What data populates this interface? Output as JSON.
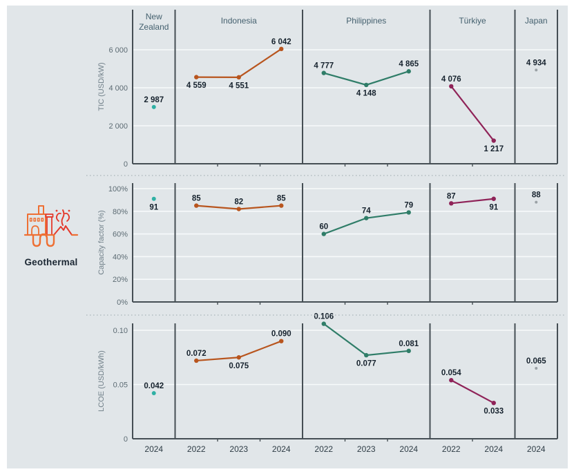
{
  "page": {
    "background": "#ffffff",
    "canvas_background": "#e1e6e9"
  },
  "legend": {
    "label": "Geothermal"
  },
  "icon": {
    "name": "geothermal-plant-icon",
    "orange": "#ee6f33",
    "red": "#e43a2c"
  },
  "chart_data": {
    "type": "line",
    "title": "Geothermal",
    "x_slot_count": 10,
    "colors": {
      "grid": "#f7fafb",
      "frame": "#454e54",
      "separator": "#a8b2b7"
    },
    "panels": [
      {
        "id": "tic",
        "axis_title": "TIC (USD/kW)",
        "yticks": [
          {
            "v": 0,
            "label": "0"
          },
          {
            "v": 2000,
            "label": "2 000"
          },
          {
            "v": 4000,
            "label": "4 000"
          },
          {
            "v": 6000,
            "label": "6 000"
          }
        ]
      },
      {
        "id": "cf",
        "axis_title": "Capacity factor (%)",
        "yticks": [
          {
            "v": 0,
            "label": "0%"
          },
          {
            "v": 20,
            "label": "20%"
          },
          {
            "v": 40,
            "label": "40%"
          },
          {
            "v": 60,
            "label": "60%"
          },
          {
            "v": 80,
            "label": "80%"
          },
          {
            "v": 100,
            "label": "100%"
          }
        ]
      },
      {
        "id": "lcoe",
        "axis_title": "LCOE (USD/kWh)",
        "yticks": [
          {
            "v": 0,
            "label": "0"
          },
          {
            "v": 0.05,
            "label": "0.05"
          },
          {
            "v": 0.1,
            "label": "0.10"
          }
        ]
      }
    ],
    "countries": [
      {
        "name": "New Zealand",
        "name_lines": [
          "New",
          "Zealand"
        ],
        "color": "#2fb0a4",
        "dot_radius": 3,
        "years": [
          "2024"
        ],
        "metrics": {
          "tic": [
            {
              "v": 2987,
              "label": "2 987",
              "pos": "above"
            }
          ],
          "cf": [
            {
              "v": 91,
              "label": "91",
              "pos": "below"
            }
          ],
          "lcoe": [
            {
              "v": 0.042,
              "label": "0.042",
              "pos": "above"
            }
          ]
        }
      },
      {
        "name": "Indonesia",
        "name_lines": [
          "Indonesia"
        ],
        "color": "#b8551e",
        "dot_radius": 3.2,
        "years": [
          "2022",
          "2023",
          "2024"
        ],
        "metrics": {
          "tic": [
            {
              "v": 4559,
              "label": "4 559",
              "pos": "below"
            },
            {
              "v": 4551,
              "label": "4 551",
              "pos": "below"
            },
            {
              "v": 6042,
              "label": "6 042",
              "pos": "above"
            }
          ],
          "cf": [
            {
              "v": 85,
              "label": "85",
              "pos": "above"
            },
            {
              "v": 82,
              "label": "82",
              "pos": "above"
            },
            {
              "v": 85,
              "label": "85",
              "pos": "above"
            }
          ],
          "lcoe": [
            {
              "v": 0.072,
              "label": "0.072",
              "pos": "above"
            },
            {
              "v": 0.075,
              "label": "0.075",
              "pos": "below"
            },
            {
              "v": 0.09,
              "label": "0.090",
              "pos": "above"
            }
          ]
        }
      },
      {
        "name": "Philippines",
        "name_lines": [
          "Philippines"
        ],
        "color": "#2f7d68",
        "dot_radius": 3.2,
        "years": [
          "2022",
          "2023",
          "2024"
        ],
        "metrics": {
          "tic": [
            {
              "v": 4777,
              "label": "4 777",
              "pos": "above"
            },
            {
              "v": 4148,
              "label": "4 148",
              "pos": "below"
            },
            {
              "v": 4865,
              "label": "4 865",
              "pos": "above"
            }
          ],
          "cf": [
            {
              "v": 60,
              "label": "60",
              "pos": "above"
            },
            {
              "v": 74,
              "label": "74",
              "pos": "above"
            },
            {
              "v": 79,
              "label": "79",
              "pos": "above"
            }
          ],
          "lcoe": [
            {
              "v": 0.106,
              "label": "0.106",
              "pos": "above"
            },
            {
              "v": 0.077,
              "label": "0.077",
              "pos": "below"
            },
            {
              "v": 0.081,
              "label": "0.081",
              "pos": "above"
            }
          ]
        }
      },
      {
        "name": "Türkiye",
        "name_lines": [
          "Türkiye"
        ],
        "color": "#8f2358",
        "dot_radius": 3.2,
        "years": [
          "2022",
          "2024"
        ],
        "metrics": {
          "tic": [
            {
              "v": 4076,
              "label": "4 076",
              "pos": "above"
            },
            {
              "v": 1217,
              "label": "1 217",
              "pos": "below"
            }
          ],
          "cf": [
            {
              "v": 87,
              "label": "87",
              "pos": "above"
            },
            {
              "v": 91,
              "label": "91",
              "pos": "below"
            }
          ],
          "lcoe": [
            {
              "v": 0.054,
              "label": "0.054",
              "pos": "above"
            },
            {
              "v": 0.033,
              "label": "0.033",
              "pos": "below"
            }
          ]
        }
      },
      {
        "name": "Japan",
        "name_lines": [
          "Japan"
        ],
        "color": "#9aa1a5",
        "dot_radius": 2,
        "years": [
          "2024"
        ],
        "metrics": {
          "tic": [
            {
              "v": 4934,
              "label": "4 934",
              "pos": "above"
            }
          ],
          "cf": [
            {
              "v": 88,
              "label": "88",
              "pos": "above"
            }
          ],
          "lcoe": [
            {
              "v": 0.065,
              "label": "0.065",
              "pos": "above"
            }
          ]
        }
      }
    ]
  }
}
